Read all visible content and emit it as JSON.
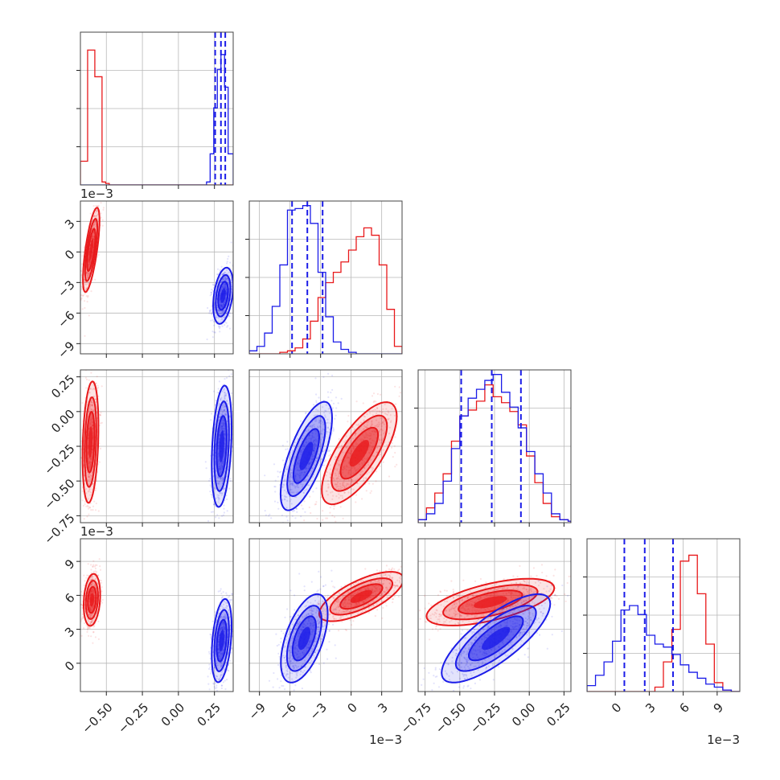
{
  "chart_data": {
    "type": "corner",
    "title": "",
    "colors": {
      "red": "#e8191b",
      "blue": "#1b1ce8"
    },
    "quantile_lines": {
      "color": "#1b1ce8",
      "style": "dashed"
    },
    "parameters": [
      {
        "index": 0,
        "range": [
          -0.68,
          0.38
        ],
        "ticks": [
          -0.5,
          -0.25,
          0.0,
          0.25
        ],
        "tick_labels": [
          "−0.50",
          "−0.25",
          "0.00",
          "0.25"
        ],
        "offset": ""
      },
      {
        "index": 1,
        "range": [
          -10.0,
          5.0
        ],
        "ticks": [
          -9,
          -6,
          -3,
          0,
          3
        ],
        "tick_labels": [
          "−9",
          "−6",
          "−3",
          "0",
          "3"
        ],
        "offset": "1e−3"
      },
      {
        "index": 2,
        "range": [
          -0.8,
          0.3
        ],
        "ticks": [
          -0.75,
          -0.5,
          -0.25,
          0.0,
          0.25
        ],
        "tick_labels": [
          "−0.75",
          "−0.50",
          "−0.25",
          "0.00",
          "0.25"
        ],
        "offset": ""
      },
      {
        "index": 3,
        "range": [
          -2.5,
          11.0
        ],
        "ticks": [
          0,
          3,
          6,
          9
        ],
        "tick_labels": [
          "0",
          "3",
          "6",
          "9"
        ],
        "offset": "1e−3"
      }
    ],
    "marginals": [
      {
        "param": 0,
        "bin_edges": [
          -0.68,
          -0.655,
          -0.63,
          -0.605,
          -0.58,
          -0.555,
          -0.53,
          -0.505,
          -0.48,
          -0.455,
          -0.43,
          -0.405,
          -0.38,
          -0.355,
          -0.33,
          -0.305,
          -0.28,
          -0.255,
          -0.23,
          -0.205,
          -0.18,
          -0.155,
          -0.13,
          -0.105,
          -0.08,
          -0.055,
          -0.03,
          -0.005,
          0.02,
          0.045,
          0.07,
          0.095,
          0.12,
          0.145,
          0.17,
          0.195,
          0.22,
          0.245,
          0.27,
          0.295,
          0.32,
          0.345,
          0.37,
          0.38
        ],
        "red": [
          0.16,
          0.16,
          0.91,
          0.91,
          0.73,
          0.73,
          0.02,
          0.01,
          0,
          0,
          0,
          0,
          0,
          0,
          0,
          0,
          0,
          0,
          0,
          0,
          0,
          0,
          0,
          0,
          0,
          0,
          0,
          0,
          0,
          0,
          0,
          0,
          0,
          0,
          0,
          0,
          0,
          0,
          0,
          0,
          0,
          0,
          0
        ],
        "blue": [
          0,
          0,
          0,
          0,
          0,
          0,
          0,
          0,
          0,
          0,
          0,
          0,
          0,
          0,
          0,
          0,
          0,
          0,
          0,
          0,
          0,
          0,
          0,
          0,
          0,
          0,
          0,
          0,
          0,
          0,
          0,
          0,
          0,
          0,
          0,
          0.02,
          0.21,
          0.52,
          0.78,
          0.88,
          0.66,
          0.21,
          0.21
        ],
        "quantiles": [
          0.255,
          0.295,
          0.325
        ]
      },
      {
        "param": 1,
        "bin_edges": [
          -10.0,
          -9.25,
          -8.5,
          -7.75,
          -7.0,
          -6.25,
          -5.5,
          -4.75,
          -4.0,
          -3.25,
          -2.5,
          -1.75,
          -1.0,
          -0.25,
          0.5,
          1.25,
          2.0,
          2.75,
          3.5,
          4.25,
          5.0
        ],
        "red": [
          0,
          0,
          0,
          0,
          0.01,
          0.02,
          0.04,
          0.1,
          0.22,
          0.38,
          0.48,
          0.55,
          0.62,
          0.7,
          0.79,
          0.85,
          0.8,
          0.6,
          0.3,
          0.05
        ],
        "blue": [
          0.02,
          0.05,
          0.14,
          0.32,
          0.6,
          0.97,
          0.98,
          1.0,
          0.88,
          0.55,
          0.25,
          0.08,
          0.03,
          0.01,
          0,
          0,
          0,
          0,
          0,
          0
        ],
        "quantiles": [
          -5.8,
          -4.3,
          -2.8
        ]
      },
      {
        "param": 2,
        "bin_edges": [
          -0.8,
          -0.74,
          -0.68,
          -0.62,
          -0.56,
          -0.5,
          -0.44,
          -0.38,
          -0.32,
          -0.26,
          -0.2,
          -0.14,
          -0.08,
          -0.02,
          0.04,
          0.1,
          0.16,
          0.22,
          0.28,
          0.3
        ],
        "red": [
          0.02,
          0.1,
          0.2,
          0.33,
          0.55,
          0.72,
          0.76,
          0.82,
          0.93,
          0.85,
          0.81,
          0.75,
          0.66,
          0.45,
          0.27,
          0.13,
          0.04,
          0.02,
          0.01
        ],
        "blue": [
          0.02,
          0.06,
          0.13,
          0.28,
          0.5,
          0.72,
          0.84,
          0.9,
          0.96,
          1.0,
          0.88,
          0.78,
          0.64,
          0.48,
          0.33,
          0.2,
          0.06,
          0.02,
          0.01
        ],
        "quantiles": [
          -0.49,
          -0.27,
          -0.06
        ]
      },
      {
        "param": 3,
        "bin_edges": [
          -2.5,
          -1.75,
          -1.0,
          -0.25,
          0.5,
          1.25,
          2.0,
          2.75,
          3.5,
          4.25,
          5.0,
          5.75,
          6.5,
          7.25,
          8.0,
          8.75,
          9.5,
          10.25,
          11.0
        ],
        "red": [
          0,
          0,
          0,
          0,
          0,
          0,
          0,
          0,
          0.03,
          0.2,
          0.42,
          0.88,
          0.92,
          0.66,
          0.32,
          0.06,
          0.01,
          0
        ],
        "blue": [
          0.04,
          0.11,
          0.2,
          0.34,
          0.55,
          0.58,
          0.52,
          0.38,
          0.32,
          0.3,
          0.25,
          0.18,
          0.13,
          0.09,
          0.05,
          0.03,
          0.01,
          0
        ],
        "quantiles": [
          0.8,
          2.6,
          5.1
        ]
      }
    ],
    "joint": [
      {
        "x": 0,
        "y": 1,
        "red": {
          "mean": [
            -0.605,
            0.2
          ],
          "sd": [
            0.025,
            1.8
          ],
          "rho": 0.7
        },
        "blue": {
          "mean": [
            0.31,
            -4.3
          ],
          "sd": [
            0.03,
            1.2
          ],
          "rho": 0.35
        }
      },
      {
        "x": 0,
        "y": 2,
        "red": {
          "mean": [
            -0.61,
            -0.22
          ],
          "sd": [
            0.024,
            0.19
          ],
          "rho": 0.25
        },
        "blue": {
          "mean": [
            0.3,
            -0.25
          ],
          "sd": [
            0.03,
            0.19
          ],
          "rho": 0.3
        }
      },
      {
        "x": 0,
        "y": 3,
        "red": {
          "mean": [
            -0.6,
            5.6
          ],
          "sd": [
            0.025,
            1.0
          ],
          "rho": 0.2
        },
        "blue": {
          "mean": [
            0.3,
            2.0
          ],
          "sd": [
            0.03,
            1.6
          ],
          "rho": 0.35
        }
      },
      {
        "x": 1,
        "y": 2,
        "red": {
          "mean": [
            0.8,
            -0.3
          ],
          "sd": [
            1.6,
            0.16
          ],
          "rho": 0.72
        },
        "blue": {
          "mean": [
            -4.4,
            -0.32
          ],
          "sd": [
            1.1,
            0.17
          ],
          "rho": 0.7
        }
      },
      {
        "x": 1,
        "y": 3,
        "red": {
          "mean": [
            1.0,
            5.9
          ],
          "sd": [
            1.8,
            0.95
          ],
          "rho": 0.7
        },
        "blue": {
          "mean": [
            -4.6,
            2.2
          ],
          "sd": [
            1.0,
            1.7
          ],
          "rho": 0.55
        }
      },
      {
        "x": 2,
        "y": 3,
        "red": {
          "mean": [
            -0.28,
            5.4
          ],
          "sd": [
            0.2,
            0.9
          ],
          "rho": 0.6
        },
        "blue": {
          "mean": [
            -0.24,
            2.2
          ],
          "sd": [
            0.17,
            1.7
          ],
          "rho": 0.78
        }
      }
    ]
  }
}
